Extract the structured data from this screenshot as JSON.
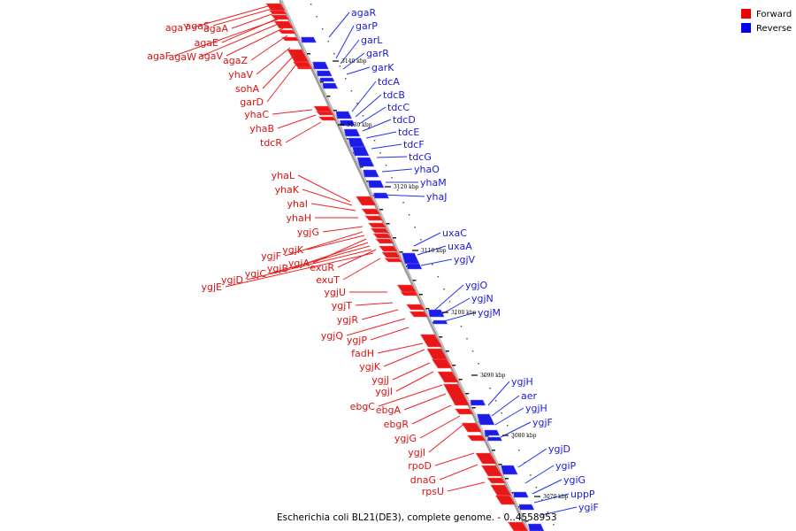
{
  "legend": {
    "forward_label": "Forward",
    "reverse_label": "Reverse",
    "forward_color": "#dd1111",
    "reverse_color": "#1a1ae0"
  },
  "title": "Escherichia coli BL21(DE3), complete genome. - 0..4558953",
  "ticks": [
    "3140 kbp",
    "3130 kbp",
    "3120 kbp",
    "3110 kbp",
    "3100 kbp",
    "3090 kbp",
    "3080 kbp",
    "3070 kbp"
  ],
  "forward_genes": [
    "agaY",
    "agaS",
    "agaA",
    "agaE",
    "agaF",
    "agaW",
    "agaV",
    "agaZ",
    "yhaV",
    "sohA",
    "garD",
    "yhaC",
    "yhaB",
    "tdcR",
    "yhaL",
    "yhaK",
    "yhaI",
    "yhaH",
    "ygjG",
    "ygjF",
    "ygjK",
    "ygjA",
    "ygjB",
    "ygjC",
    "ygjD",
    "ygjE",
    "exuR",
    "exuT",
    "ygjU",
    "ygjT",
    "ygjR",
    "ygjQ",
    "ygjP",
    "fadH",
    "ygjK",
    "ygjJ",
    "ygjI",
    "ebgC",
    "ebgA",
    "ebgR",
    "ygjG",
    "ygjI",
    "rpoD",
    "dnaG",
    "rpsU"
  ],
  "reverse_genes": [
    "agaR",
    "garP",
    "garL",
    "garR",
    "garK",
    "tdcA",
    "tdcB",
    "tdcC",
    "tdcD",
    "tdcE",
    "tdcF",
    "tdcG",
    "yhaO",
    "yhaM",
    "yhaJ",
    "uxaC",
    "uxaA",
    "ygjV",
    "ygjO",
    "ygjN",
    "ygjM",
    "ygjH",
    "aer",
    "ygjH",
    "ygjF",
    "ygjD",
    "ygiP",
    "ygiG",
    "uppP",
    "ygiF"
  ]
}
